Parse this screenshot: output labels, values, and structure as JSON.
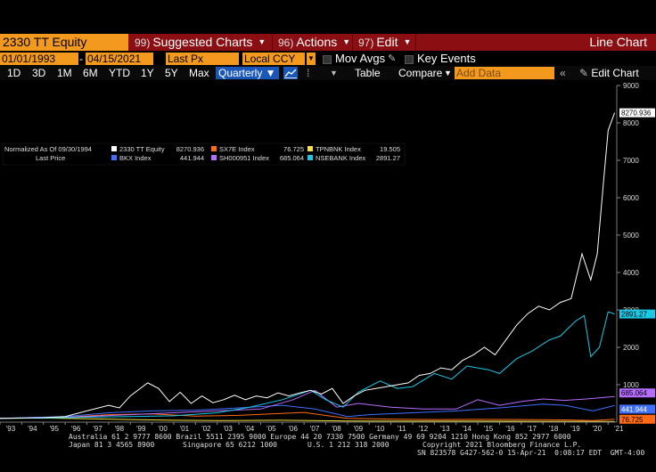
{
  "toolbar": {
    "ticker": "2330 TT Equity",
    "menus": [
      {
        "num": "99)",
        "label": "Suggested Charts"
      },
      {
        "num": "96)",
        "label": "Actions"
      },
      {
        "num": "97)",
        "label": "Edit"
      }
    ],
    "title": "Line Chart"
  },
  "range_bar": {
    "start_date": "01/01/1993",
    "end_date": "04/15/2021",
    "field": "Last Px",
    "currency": "Local CCY",
    "mov_avgs": "Mov Avgs",
    "key_events": "Key Events"
  },
  "period_bar": {
    "periods": [
      "1D",
      "3D",
      "1M",
      "6M",
      "YTD",
      "1Y",
      "5Y",
      "Max"
    ],
    "frequency": "Quarterly ▼",
    "table": "Table",
    "compare": "Compare",
    "add_data": "Add Data",
    "edit_chart": "Edit Chart"
  },
  "legend": {
    "header_left": "Normalized As Of 09/30/1994",
    "header_sub": "Last Price",
    "entries": [
      {
        "name": "2330 TT Equity",
        "value": "8270.936",
        "color": "#ffffff"
      },
      {
        "name": "SX7E Index",
        "value": "76.725",
        "color": "#ff6a13"
      },
      {
        "name": "TPNBNK Index",
        "value": "19.505",
        "color": "#f5e23a"
      },
      {
        "name": "BKX Index",
        "value": "441.944",
        "color": "#3f6fff"
      },
      {
        "name": "SH000951 Index",
        "value": "685.064",
        "color": "#b66cff"
      },
      {
        "name": "NSEBANK Index",
        "value": "2891.27",
        "color": "#19c9e6"
      }
    ]
  },
  "last_labels": [
    "8270.936",
    "2891.27",
    "685.064",
    "441.944",
    "76.725"
  ],
  "footer": {
    "line1": "Australia 61 2 9777 8600 Brazil 5511 2395 9000 Europe 44 20 7330 7500 Germany 49 69 9204 1210 Hong Kong 852 2977 6000",
    "line2a": "Japan 81 3 4565 8900",
    "line2b": "Singapore 65 6212 1000",
    "line2c": "U.S. 1 212 318 2000",
    "line2d": "Copyright 2021 Bloomberg Finance L.P.",
    "line3": "SN 823578 G427-562-0 15-Apr-21  0:08:17 EDT  GMT-4:00"
  },
  "chart_data": {
    "type": "line",
    "xlim": [
      1993.0,
      2021.4
    ],
    "ylim": [
      0,
      9000
    ],
    "ytick_values": [
      1000,
      2000,
      3000,
      4000,
      5000,
      6000,
      7000,
      8000,
      9000
    ],
    "ytick_labels": [
      "1000",
      "2000",
      "3000",
      "4000",
      "5000",
      "6000",
      "7000",
      "8000",
      "9000"
    ],
    "xtick_values": [
      1993,
      1994,
      1995,
      1996,
      1997,
      1998,
      1999,
      2000,
      2001,
      2002,
      2003,
      2004,
      2005,
      2006,
      2007,
      2008,
      2009,
      2010,
      2011,
      2012,
      2013,
      2014,
      2015,
      2016,
      2017,
      2018,
      2019,
      2020,
      2021
    ],
    "xtick_labels": [
      "'93",
      "'94",
      "'95",
      "'96",
      "'97",
      "'98",
      "'99",
      "'00",
      "'01",
      "'02",
      "'03",
      "'04",
      "'05",
      "'06",
      "'07",
      "'08",
      "'09",
      "'10",
      "'11",
      "'12",
      "'13",
      "'14",
      "'15",
      "'16",
      "'17",
      "'18",
      "'19",
      "'20",
      "'21"
    ],
    "grid": false,
    "legend_position": "top-left",
    "series": [
      {
        "name": "2330 TT Equity",
        "color": "#ffffff",
        "points": [
          [
            1993,
            100
          ],
          [
            1994,
            110
          ],
          [
            1995,
            120
          ],
          [
            1996,
            150
          ],
          [
            1997,
            300
          ],
          [
            1998,
            450
          ],
          [
            1998.5,
            380
          ],
          [
            1999,
            700
          ],
          [
            1999.8,
            1050
          ],
          [
            2000.3,
            900
          ],
          [
            2000.8,
            550
          ],
          [
            2001.3,
            800
          ],
          [
            2001.8,
            500
          ],
          [
            2002.3,
            700
          ],
          [
            2002.8,
            520
          ],
          [
            2003.3,
            600
          ],
          [
            2003.8,
            720
          ],
          [
            2004.3,
            600
          ],
          [
            2004.8,
            700
          ],
          [
            2005.3,
            650
          ],
          [
            2005.8,
            780
          ],
          [
            2006.3,
            700
          ],
          [
            2006.8,
            780
          ],
          [
            2007.3,
            850
          ],
          [
            2007.8,
            750
          ],
          [
            2008.3,
            900
          ],
          [
            2008.8,
            500
          ],
          [
            2009.3,
            700
          ],
          [
            2009.8,
            850
          ],
          [
            2010.3,
            900
          ],
          [
            2010.8,
            950
          ],
          [
            2011.3,
            1000
          ],
          [
            2011.8,
            1050
          ],
          [
            2012.3,
            1250
          ],
          [
            2012.8,
            1300
          ],
          [
            2013.3,
            1450
          ],
          [
            2013.8,
            1400
          ],
          [
            2014.3,
            1650
          ],
          [
            2014.8,
            1800
          ],
          [
            2015.3,
            2000
          ],
          [
            2015.8,
            1800
          ],
          [
            2016.3,
            2200
          ],
          [
            2016.8,
            2600
          ],
          [
            2017.3,
            2900
          ],
          [
            2017.8,
            3100
          ],
          [
            2018.3,
            3000
          ],
          [
            2018.8,
            3200
          ],
          [
            2019.3,
            3300
          ],
          [
            2019.8,
            4500
          ],
          [
            2020.2,
            3800
          ],
          [
            2020.5,
            4500
          ],
          [
            2020.8,
            6500
          ],
          [
            2021.0,
            7800
          ],
          [
            2021.3,
            8271
          ]
        ]
      },
      {
        "name": "NSEBANK Index",
        "color": "#19c9e6",
        "points": [
          [
            1993,
            100
          ],
          [
            1995,
            110
          ],
          [
            1997,
            130
          ],
          [
            1999,
            150
          ],
          [
            2001,
            170
          ],
          [
            2003,
            250
          ],
          [
            2004.5,
            400
          ],
          [
            2006,
            600
          ],
          [
            2007.3,
            850
          ],
          [
            2008,
            600
          ],
          [
            2008.8,
            400
          ],
          [
            2009.5,
            800
          ],
          [
            2010.5,
            1100
          ],
          [
            2011.3,
            900
          ],
          [
            2012,
            950
          ],
          [
            2013,
            1300
          ],
          [
            2013.8,
            1150
          ],
          [
            2014.5,
            1500
          ],
          [
            2015.5,
            1400
          ],
          [
            2016,
            1300
          ],
          [
            2016.8,
            1700
          ],
          [
            2017.5,
            1900
          ],
          [
            2018.3,
            2200
          ],
          [
            2018.8,
            2300
          ],
          [
            2019.5,
            2700
          ],
          [
            2019.9,
            2850
          ],
          [
            2020.2,
            1750
          ],
          [
            2020.6,
            2000
          ],
          [
            2021.0,
            2950
          ],
          [
            2021.3,
            2891
          ]
        ]
      },
      {
        "name": "SH000951 Index",
        "color": "#b66cff",
        "points": [
          [
            1993,
            100
          ],
          [
            1995,
            120
          ],
          [
            1997,
            150
          ],
          [
            1999,
            200
          ],
          [
            2001,
            250
          ],
          [
            2003,
            300
          ],
          [
            2005,
            350
          ],
          [
            2006.5,
            600
          ],
          [
            2007.5,
            850
          ],
          [
            2008.5,
            400
          ],
          [
            2009.5,
            500
          ],
          [
            2011,
            400
          ],
          [
            2012.5,
            350
          ],
          [
            2014,
            350
          ],
          [
            2015,
            600
          ],
          [
            2016,
            450
          ],
          [
            2017,
            550
          ],
          [
            2018,
            620
          ],
          [
            2019,
            580
          ],
          [
            2020,
            620
          ],
          [
            2021.3,
            685
          ]
        ]
      },
      {
        "name": "BKX Index",
        "color": "#3f6fff",
        "points": [
          [
            1993,
            100
          ],
          [
            1996,
            150
          ],
          [
            1998,
            250
          ],
          [
            2000,
            300
          ],
          [
            2002,
            320
          ],
          [
            2004,
            380
          ],
          [
            2006,
            450
          ],
          [
            2007.5,
            350
          ],
          [
            2009,
            150
          ],
          [
            2010,
            200
          ],
          [
            2012,
            250
          ],
          [
            2014,
            300
          ],
          [
            2016,
            380
          ],
          [
            2018,
            480
          ],
          [
            2019,
            450
          ],
          [
            2020.3,
            300
          ],
          [
            2021.3,
            442
          ]
        ]
      },
      {
        "name": "SX7E Index",
        "color": "#ff6a13",
        "points": [
          [
            1993,
            100
          ],
          [
            1996,
            130
          ],
          [
            1998,
            200
          ],
          [
            2000,
            220
          ],
          [
            2002,
            160
          ],
          [
            2004,
            180
          ],
          [
            2007,
            260
          ],
          [
            2009,
            100
          ],
          [
            2011,
            80
          ],
          [
            2013,
            70
          ],
          [
            2015,
            75
          ],
          [
            2017,
            70
          ],
          [
            2019,
            60
          ],
          [
            2020.3,
            40
          ],
          [
            2021.3,
            77
          ]
        ]
      },
      {
        "name": "TPNBNK Index",
        "color": "#f5e23a",
        "points": [
          [
            1993,
            100
          ],
          [
            1995,
            110
          ],
          [
            1997,
            90
          ],
          [
            1999,
            70
          ],
          [
            2001,
            50
          ],
          [
            2003,
            40
          ],
          [
            2006,
            50
          ],
          [
            2009,
            30
          ],
          [
            2012,
            25
          ],
          [
            2015,
            25
          ],
          [
            2018,
            22
          ],
          [
            2021.3,
            20
          ]
        ]
      }
    ]
  }
}
